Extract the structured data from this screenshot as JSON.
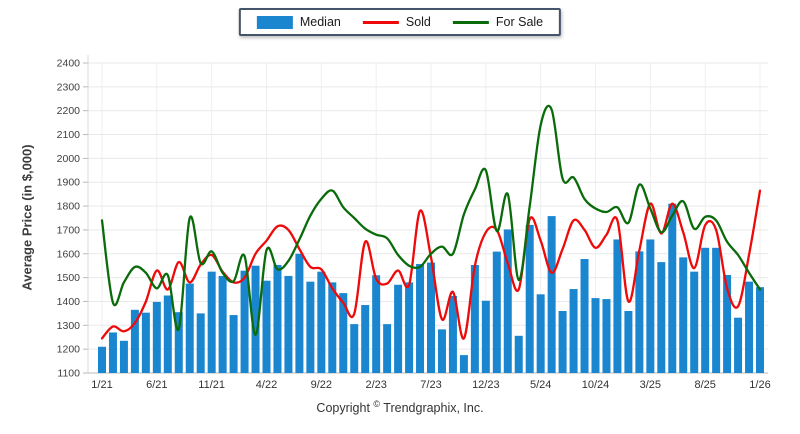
{
  "legend": {
    "position": "top-center"
  },
  "footer": {
    "copyright_prefix": "Copyright",
    "copyright_symbol": "©",
    "copyright_suffix": " Trendgraphix, Inc."
  },
  "chart_data": {
    "type": "combo",
    "title": "",
    "ylabel": "Average Price (in $,000)",
    "xlabel": "",
    "ylim": [
      1100,
      2400
    ],
    "yticks": [
      1100,
      1200,
      1300,
      1400,
      1500,
      1600,
      1700,
      1800,
      1900,
      2000,
      2100,
      2200,
      2300,
      2400
    ],
    "grid": "horizontal-and-labeled-vertical",
    "legend_position": "top",
    "months": [
      "1/21",
      "2/21",
      "3/21",
      "4/21",
      "5/21",
      "6/21",
      "7/21",
      "8/21",
      "9/21",
      "10/21",
      "11/21",
      "12/21",
      "1/22",
      "2/22",
      "3/22",
      "4/22",
      "5/22",
      "6/22",
      "7/22",
      "8/22",
      "9/22",
      "10/22",
      "11/22",
      "12/22",
      "1/23",
      "2/23",
      "3/23",
      "4/23",
      "5/23",
      "6/23",
      "7/23",
      "8/23",
      "9/23",
      "10/23",
      "11/23",
      "12/23",
      "1/24",
      "2/24",
      "3/24",
      "4/24",
      "5/24",
      "6/24",
      "7/24",
      "8/24",
      "9/24",
      "10/24",
      "11/24",
      "12/24",
      "1/25",
      "2/25",
      "3/25",
      "4/25",
      "5/25",
      "6/25",
      "7/25",
      "8/25",
      "9/25",
      "10/25",
      "11/25",
      "12/25",
      "1/26"
    ],
    "x_tick_indices": [
      0,
      5,
      10,
      15,
      20,
      25,
      30,
      35,
      40,
      45,
      50,
      55,
      60
    ],
    "x_tick_labels": [
      "1/21",
      "6/21",
      "11/21",
      "4/22",
      "9/22",
      "2/23",
      "7/23",
      "12/23",
      "5/24",
      "10/24",
      "3/25",
      "8/25",
      "1/26"
    ],
    "series": [
      {
        "name": "Median",
        "type": "bar",
        "color": "#1b86d0",
        "values": [
          1210,
          1270,
          1235,
          1365,
          1353,
          1398,
          1425,
          1355,
          1475,
          1350,
          1525,
          1507,
          1343,
          1529,
          1550,
          1487,
          1553,
          1507,
          1600,
          1483,
          1525,
          1480,
          1435,
          1305,
          1385,
          1510,
          1305,
          1470,
          1480,
          1557,
          1563,
          1283,
          1423,
          1175,
          1553,
          1403,
          1609,
          1702,
          1256,
          1721,
          1430,
          1758,
          1360,
          1452,
          1578,
          1414,
          1410,
          1660,
          1360,
          1610,
          1660,
          1565,
          1810,
          1585,
          1525,
          1625,
          1625,
          1511,
          1332,
          1483,
          1460
        ]
      },
      {
        "name": "Sold",
        "type": "line",
        "color": "#ee0a0a",
        "values": [
          1245,
          1295,
          1275,
          1310,
          1400,
          1530,
          1450,
          1565,
          1480,
          1555,
          1595,
          1525,
          1480,
          1500,
          1600,
          1655,
          1715,
          1700,
          1620,
          1545,
          1535,
          1455,
          1395,
          1348,
          1650,
          1495,
          1475,
          1530,
          1470,
          1780,
          1585,
          1325,
          1440,
          1245,
          1550,
          1690,
          1700,
          1560,
          1450,
          1745,
          1655,
          1520,
          1620,
          1740,
          1700,
          1625,
          1680,
          1740,
          1400,
          1615,
          1810,
          1685,
          1810,
          1690,
          1540,
          1720,
          1700,
          1455,
          1380,
          1595,
          1865
        ]
      },
      {
        "name": "For Sale",
        "type": "line",
        "color": "#0a6b0b",
        "values": [
          1740,
          1395,
          1480,
          1545,
          1520,
          1455,
          1510,
          1285,
          1750,
          1560,
          1610,
          1520,
          1485,
          1590,
          1260,
          1615,
          1535,
          1570,
          1660,
          1760,
          1830,
          1865,
          1795,
          1750,
          1705,
          1680,
          1665,
          1595,
          1550,
          1545,
          1600,
          1630,
          1600,
          1765,
          1870,
          1950,
          1695,
          1850,
          1490,
          1800,
          2140,
          2205,
          1915,
          1920,
          1830,
          1790,
          1775,
          1795,
          1730,
          1890,
          1790,
          1690,
          1760,
          1820,
          1705,
          1755,
          1740,
          1650,
          1595,
          1520,
          1450
        ]
      }
    ],
    "colors": {
      "gridline": "#e9e9e9",
      "vertical_gridline": "#efefef",
      "axis_line": "#b8b8b8",
      "tick_text": "#404040"
    }
  }
}
